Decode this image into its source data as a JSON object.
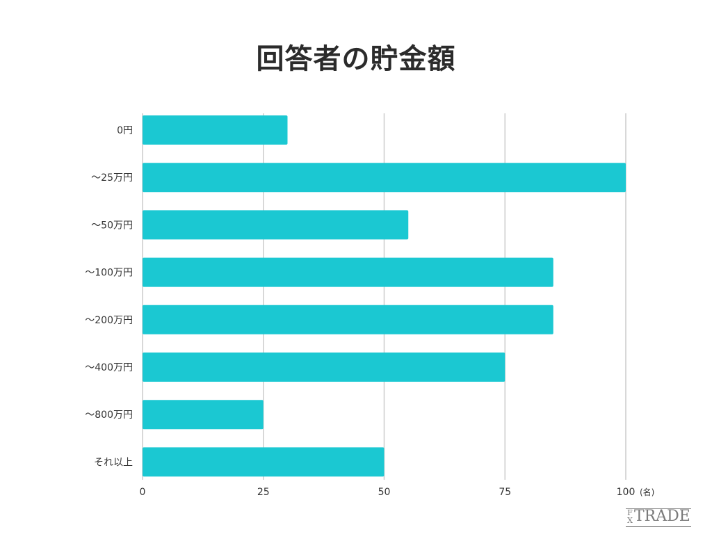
{
  "chart_data": {
    "type": "bar",
    "orientation": "horizontal",
    "title": "回答者の貯金額",
    "categories": [
      "0円",
      "〜25万円",
      "〜50万円",
      "〜100万円",
      "〜200万円",
      "〜400万円",
      "〜800万円",
      "それ以上"
    ],
    "values": [
      30,
      100,
      55,
      85,
      85,
      75,
      25,
      50
    ],
    "x_ticks": [
      0,
      25,
      50,
      75,
      100
    ],
    "x_unit": "(名)",
    "xlim": [
      0,
      100
    ],
    "grid": true,
    "bar_color": "#1bc8d2",
    "grid_color": "#cccccc"
  },
  "logo": {
    "fx_top": "F",
    "fx_bottom": "X",
    "text": "TRADE"
  }
}
